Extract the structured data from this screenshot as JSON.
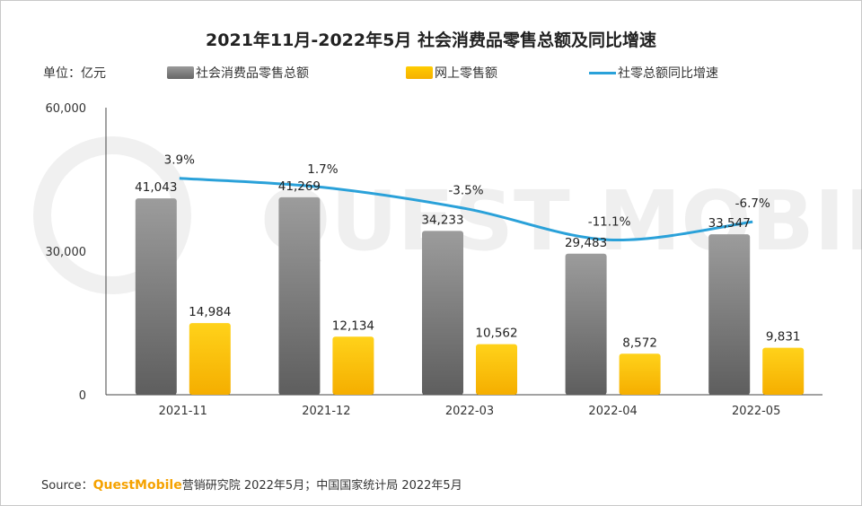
{
  "title": "2021年11月-2022年5月 社会消费品零售总额及同比增速",
  "unit_label": "单位：亿元",
  "legend": {
    "total": "社会消费品零售总额",
    "online": "网上零售额",
    "growth": "社零总额同比增速"
  },
  "source": {
    "prefix": "Source：",
    "brand": "QuestMobile",
    "suffix": "营销研究院 2022年5月；中国国家统计局  2022年5月"
  },
  "colors": {
    "total": "#7a7a7a",
    "online": "#fcc10a",
    "growth": "#2aa1d9"
  },
  "chart_data": {
    "type": "bar",
    "title": "2021年11月-2022年5月 社会消费品零售总额及同比增速",
    "categories": [
      "2021-11",
      "2021-12",
      "2022-03",
      "2022-04",
      "2022-05"
    ],
    "series": [
      {
        "name": "社会消费品零售总额",
        "type": "bar",
        "values": [
          41043,
          41269,
          34233,
          29483,
          33547
        ],
        "labels": [
          "41,043",
          "41,269",
          "34,233",
          "29,483",
          "33,547"
        ]
      },
      {
        "name": "网上零售额",
        "type": "bar",
        "values": [
          14984,
          12134,
          10562,
          8572,
          9831
        ],
        "labels": [
          "14,984",
          "12,134",
          "10,562",
          "8,572",
          "9,831"
        ]
      },
      {
        "name": "社零总额同比增速",
        "type": "line",
        "values": [
          3.9,
          1.7,
          -3.5,
          -11.1,
          -6.7
        ],
        "labels": [
          "3.9%",
          "1.7%",
          "-3.5%",
          "-11.1%",
          "-6.7%"
        ]
      }
    ],
    "yticks": [
      "0",
      "30,000",
      "60,000"
    ],
    "ylim": [
      0,
      60000
    ],
    "ylabel": "单位：亿元",
    "legend_position": "top"
  }
}
